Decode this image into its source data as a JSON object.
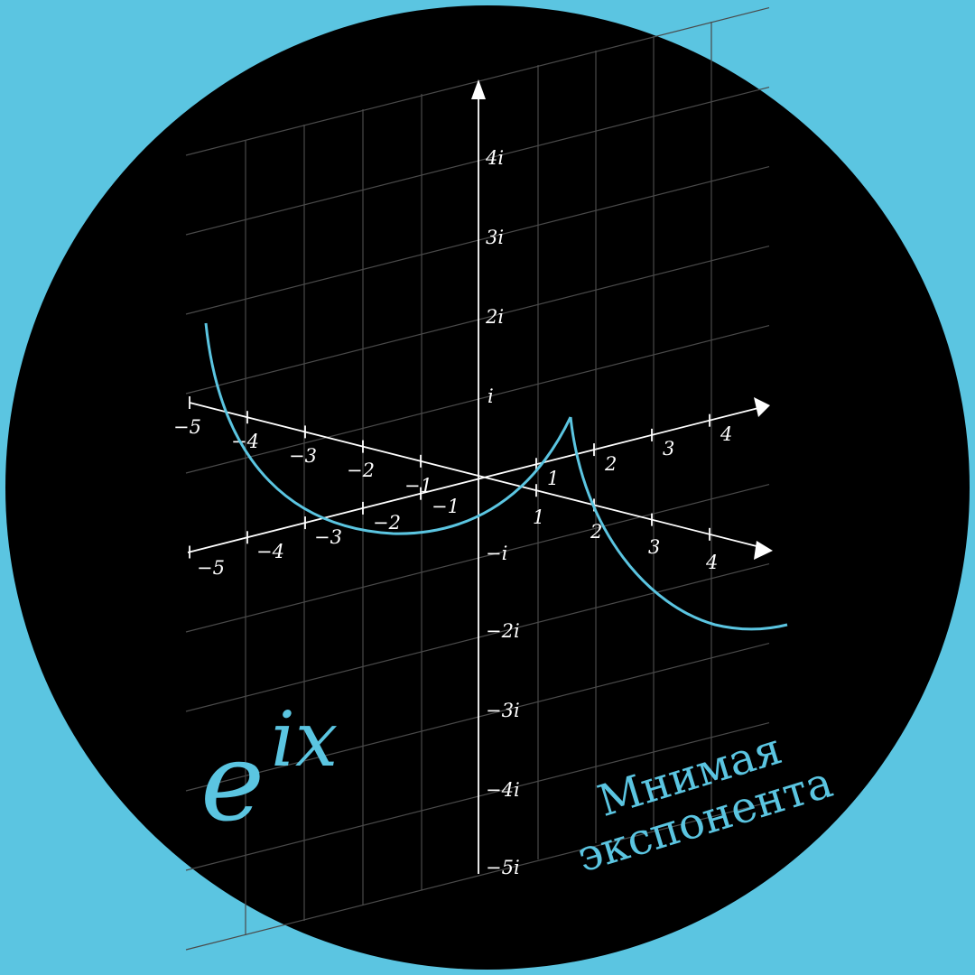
{
  "colors": {
    "background": "#5bc5e1",
    "disc": "#000000",
    "curve": "#5bc5e1",
    "axes": "#ffffff",
    "grid": "#4a4a4a"
  },
  "formula": {
    "base": "e",
    "exponent": "ix"
  },
  "caption": {
    "line1": "Мнимая",
    "line2": "экспонента"
  },
  "axis_labels": {
    "imaginary": [
      "4i",
      "3i",
      "2i",
      "i",
      "−i",
      "−2i",
      "−3i",
      "−4i",
      "−5i"
    ],
    "axis_a": [
      "−5",
      "−4",
      "−3",
      "−2",
      "−1",
      "1",
      "2",
      "3",
      "4"
    ],
    "axis_b": [
      "−5",
      "−4",
      "−3",
      "−2",
      "−1",
      "1",
      "2",
      "3",
      "4"
    ]
  }
}
